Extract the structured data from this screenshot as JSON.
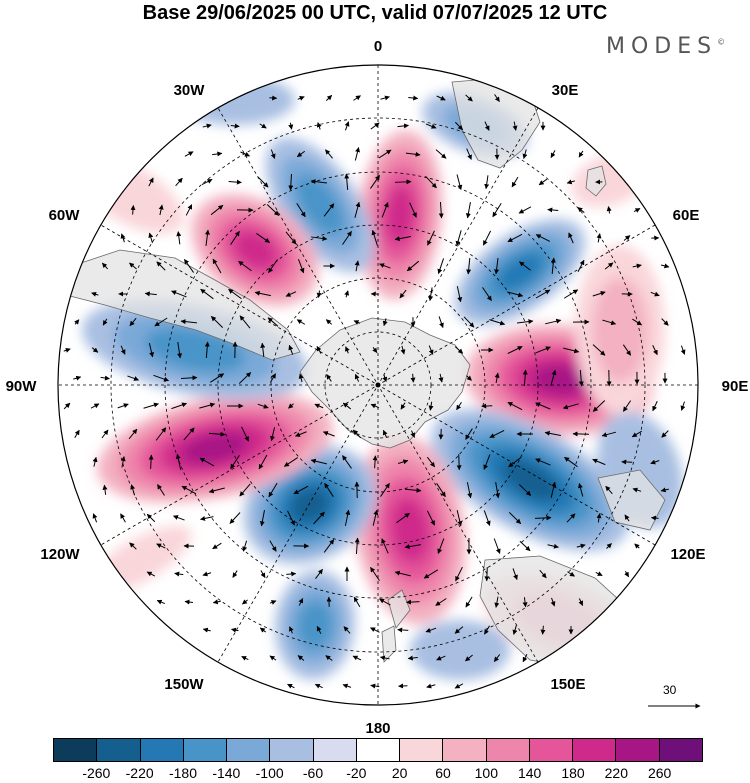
{
  "title": "Base 29/06/2025 00 UTC, valid 07/07/2025 12 UTC",
  "brand": "MODES",
  "brand_mark": "©",
  "map": {
    "projection": "south-polar-stereographic",
    "longitude_labels": {
      "top": "0",
      "top_right": "30E",
      "upper_right": "60E",
      "right": "90E",
      "lower_right": "120E",
      "bottom_right": "150E",
      "bottom": "180",
      "bottom_left": "150W",
      "lower_left": "120W",
      "left": "90W",
      "upper_left": "60W",
      "top_left": "30W"
    },
    "reference_vector_label": "30",
    "colors": {
      "land_fill": "#e6e6e6",
      "coast": "#666666",
      "grid": "#000000"
    }
  },
  "colorbar": {
    "colors": [
      "#0d3b5c",
      "#155f8f",
      "#2479b5",
      "#4894c8",
      "#7aa9d8",
      "#a9bfe2",
      "#d9dcef",
      "#ffffff",
      "#f9d6da",
      "#f3b1c1",
      "#ee86ab",
      "#e4559a",
      "#cf2a8b",
      "#a81686",
      "#6e0f7a"
    ],
    "tick_labels": [
      "-260",
      "-220",
      "-180",
      "-140",
      "-100",
      "-60",
      "-20",
      "20",
      "60",
      "100",
      "140",
      "180",
      "220",
      "260"
    ]
  }
}
